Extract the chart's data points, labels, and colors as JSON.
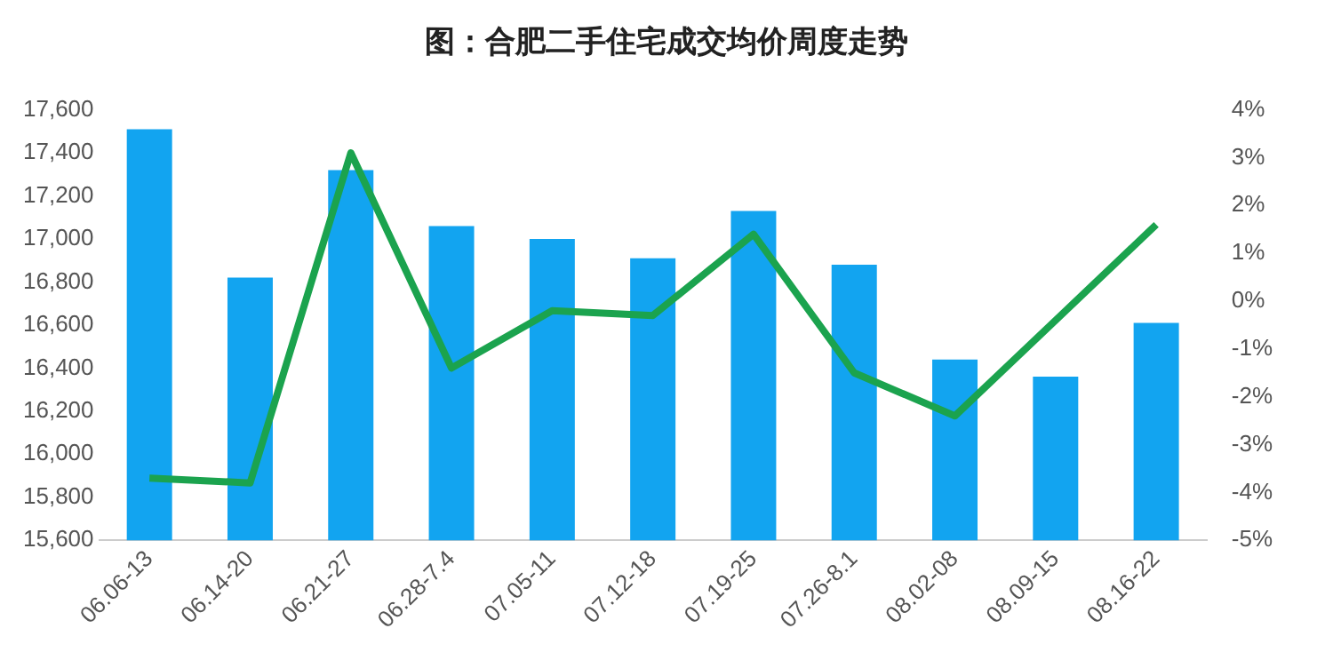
{
  "chart_data": {
    "type": "bar",
    "title": "图：合肥二手住宅成交均价周度走势",
    "categories": [
      "06.06-13",
      "06.14-20",
      "06.21-27",
      "06.28-7.4",
      "07.05-11",
      "07.12-18",
      "07.19-25",
      "07.26-8.1",
      "08.02-08",
      "08.09-15",
      "08.16-22"
    ],
    "series": [
      {
        "color": "#12a4f0",
        "values": [
          17510,
          16820,
          17320,
          17060,
          17000,
          16910,
          17130,
          16880,
          16440,
          16360,
          16610
        ]
      },
      {
        "type": "line",
        "axis": "y2",
        "color": "#1ba34e",
        "values": [
          -3.7,
          -3.8,
          3.1,
          -1.4,
          -0.2,
          -0.3,
          1.4,
          -1.5,
          -2.4,
          -0.4,
          1.6
        ]
      }
    ],
    "ylim": [
      15600,
      17600
    ],
    "yticks": [
      {
        "value": 15600,
        "label": "15,600"
      },
      {
        "value": 15800,
        "label": "15,800"
      },
      {
        "value": 16000,
        "label": "16,000"
      },
      {
        "value": 16200,
        "label": "16,200"
      },
      {
        "value": 16400,
        "label": "16,400"
      },
      {
        "value": 16600,
        "label": "16,600"
      },
      {
        "value": 16800,
        "label": "16,800"
      },
      {
        "value": 17000,
        "label": "17,000"
      },
      {
        "value": 17200,
        "label": "17,200"
      },
      {
        "value": 17400,
        "label": "17,400"
      },
      {
        "value": 17600,
        "label": "17,600"
      }
    ],
    "y2lim": [
      -5,
      4
    ],
    "y2ticks": [
      {
        "value": 4,
        "label": "4%"
      },
      {
        "value": 3,
        "label": "3%"
      },
      {
        "value": 2,
        "label": "2%"
      },
      {
        "value": 1,
        "label": "1%"
      },
      {
        "value": 0,
        "label": "0%"
      },
      {
        "value": -1,
        "label": "-1%"
      },
      {
        "value": -2,
        "label": "-2%"
      },
      {
        "value": -3,
        "label": "-3%"
      },
      {
        "value": -4,
        "label": "-4%"
      },
      {
        "value": -5,
        "label": "-5%"
      }
    ],
    "grid": false,
    "legend": false,
    "marker": "none",
    "line_style": "solid"
  }
}
